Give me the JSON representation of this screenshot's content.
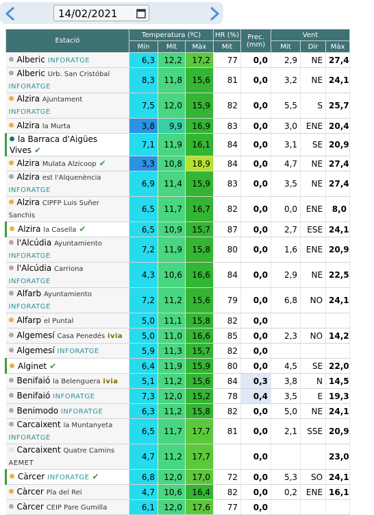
{
  "date": "14/02/2021",
  "table": {
    "headers": {
      "station": "Estació",
      "temperature": "Temperatura (ºC)",
      "humidity": "HR (%)",
      "precipitation": "Prec. (mm)",
      "wind": "Vent",
      "temp_min": "Mín",
      "temp_mit": "Mit",
      "temp_max": "Màx",
      "hr_mit": "Mit",
      "wind_mit": "Mit",
      "wind_dir": "Dir",
      "wind_max": "Màx"
    },
    "rows": [
      {
        "station": "Alberic",
        "network": "INFORATGE",
        "dot": "#aaaaaa",
        "cells": [
          "6,3",
          "12,2",
          "17,2",
          "77",
          "0,0",
          "2,9",
          "NE",
          "27,4"
        ]
      },
      {
        "station": "Alberic",
        "place": "Urb. San Cristóbal",
        "network": "INFORATGE",
        "dot": "#aaaaaa",
        "cells": [
          "8,3",
          "11,8",
          "15,6",
          "81",
          "0,0",
          "3,2",
          "NE",
          "24,1"
        ]
      },
      {
        "station": "Alzira",
        "place": "Ajuntament",
        "network": "INFORATGE",
        "dot": "#e8b04a",
        "cells": [
          "7,5",
          "12,0",
          "15,9",
          "82",
          "0,0",
          "5,5",
          "S",
          "25,7"
        ]
      },
      {
        "station": "Alzira",
        "place": "la Murta",
        "dot": "#e8b04a",
        "cells": [
          "3,8",
          "9,9",
          "16,9",
          "83",
          "0,0",
          "3,0",
          "ENE",
          "20,4"
        ]
      },
      {
        "station": "la Barraca d'Aigües Vives",
        "check": true,
        "highlight": true,
        "dot": "#1e6e6e",
        "cells": [
          "7,1",
          "11,9",
          "16,1",
          "84",
          "0,0",
          "3,1",
          "SE",
          "20,9"
        ]
      },
      {
        "station": "Alzira",
        "place": "Mulata Alzicoop",
        "check": true,
        "dot": "#e8b04a",
        "cells": [
          "3,3",
          "10,8",
          "18,9",
          "84",
          "0,0",
          "4,7",
          "NE",
          "27,4"
        ]
      },
      {
        "station": "Alzira",
        "place": "est l'Alquenència",
        "network": "INFORATGE",
        "dot": "#aaaaaa",
        "cells": [
          "6,9",
          "11,4",
          "15,9",
          "83",
          "0,0",
          "3,5",
          "NE",
          "27,4"
        ]
      },
      {
        "station": "Alzira",
        "place": "CIPFP Luis Suñer Sanchis",
        "dot": "#e8b04a",
        "cells": [
          "6,5",
          "11,7",
          "16,7",
          "82",
          "0,0",
          "0,0",
          "ENE",
          "8,0"
        ]
      },
      {
        "station": "Alzira",
        "place": "la Casella",
        "check": true,
        "highlight": true,
        "dot": "#e8b04a",
        "cells": [
          "6,5",
          "10,9",
          "15,7",
          "87",
          "0,0",
          "2,7",
          "ESE",
          "24,1"
        ]
      },
      {
        "station": "l'Alcúdia",
        "place": "Ayuntamiento",
        "network": "INFORATGE",
        "dot": "#aaaaaa",
        "cells": [
          "7,2",
          "11,9",
          "15,8",
          "80",
          "0,0",
          "1,6",
          "ENE",
          "20,9"
        ]
      },
      {
        "station": "l'Alcúdia",
        "place": "Carriona",
        "network": "INFORATGE",
        "dot": "#aaaaaa",
        "cells": [
          "4,3",
          "10,6",
          "16,6",
          "84",
          "0,0",
          "2,9",
          "NE",
          "22,5"
        ]
      },
      {
        "station": "Alfarb",
        "place": "Ayuntamiento",
        "network": "INFORATGE",
        "dot": "#aaaaaa",
        "cells": [
          "7,2",
          "11,2",
          "15,6",
          "79",
          "0,0",
          "6,8",
          "NO",
          "24,1"
        ]
      },
      {
        "station": "Alfarp",
        "place": "el Puntal",
        "dot": "#e8b04a",
        "cells": [
          "5,0",
          "11,1",
          "15,8",
          "82",
          "0,0",
          null,
          null,
          null
        ]
      },
      {
        "station": "Algemesí",
        "place": "Casa Penedés",
        "network": "ivia",
        "dot": "#aaaaaa",
        "cells": [
          "5,0",
          "11,0",
          "16,6",
          "85",
          "0,0",
          "2,3",
          "NO",
          "14,2"
        ]
      },
      {
        "station": "Algemesí",
        "network": "INFORATGE",
        "dot": "#aaaaaa",
        "cells": [
          "5,9",
          "11,3",
          "15,7",
          "82",
          "0,0",
          null,
          null,
          null
        ]
      },
      {
        "station": "Alginet",
        "check": true,
        "highlight": true,
        "dot": "#e8b04a",
        "cells": [
          "6,4",
          "11,9",
          "15,9",
          "80",
          "0,0",
          "4,5",
          "SE",
          "22,0"
        ]
      },
      {
        "station": "Benifaió",
        "place": "la Belenguera",
        "network": "ivia",
        "dot": "#aaaaaa",
        "cells": [
          "5,1",
          "11,2",
          "15,6",
          "84",
          "0,3",
          "3,8",
          "N",
          "14,5"
        ]
      },
      {
        "station": "Benifaió",
        "network": "INFORATGE",
        "dot": "#aaaaaa",
        "cells": [
          "7,3",
          "12,0",
          "15,2",
          "78",
          "0,4",
          "3,5",
          "E",
          "19,3"
        ]
      },
      {
        "station": "Benimodo",
        "network": "INFORATGE",
        "dot": "#aaaaaa",
        "cells": [
          "6,3",
          "11,2",
          "15,8",
          "82",
          "0,0",
          "5,0",
          "NE",
          "24,1"
        ]
      },
      {
        "station": "Carcaixent",
        "place": "la Muntanyeta",
        "network": "INFORATGE",
        "dot": "#aaaaaa",
        "cells": [
          "6,5",
          "11,7",
          "17,7",
          "81",
          "0,0",
          "2,1",
          "SSE",
          "20,9"
        ]
      },
      {
        "station": "Carcaixent",
        "place": "Quatre Camins",
        "network": "AEMET",
        "dot": "#e4e4e4",
        "cells": [
          "4,7",
          "11,2",
          "17,7",
          null,
          "0,0",
          null,
          null,
          "23,0"
        ]
      },
      {
        "station": "Càrcer",
        "network": "INFORATGE",
        "check": true,
        "highlight": true,
        "dot": "#e8b04a",
        "cells": [
          "6,8",
          "12,0",
          "17,0",
          "72",
          "0,0",
          "5,3",
          "SO",
          "24,1"
        ]
      },
      {
        "station": "Càrcer",
        "place": "Pla del Rei",
        "dot": "#e8b04a",
        "cells": [
          "4,7",
          "10,6",
          "16,4",
          "82",
          "0,0",
          "0,2",
          "ENE",
          "16,1"
        ]
      },
      {
        "station": "Càrcer",
        "place": "CEIP Pare Gumilla",
        "dot": "#aaaaaa",
        "cells": [
          "6,1",
          "12,0",
          "17,6",
          "77",
          "0,0",
          null,
          null,
          null
        ]
      }
    ]
  }
}
